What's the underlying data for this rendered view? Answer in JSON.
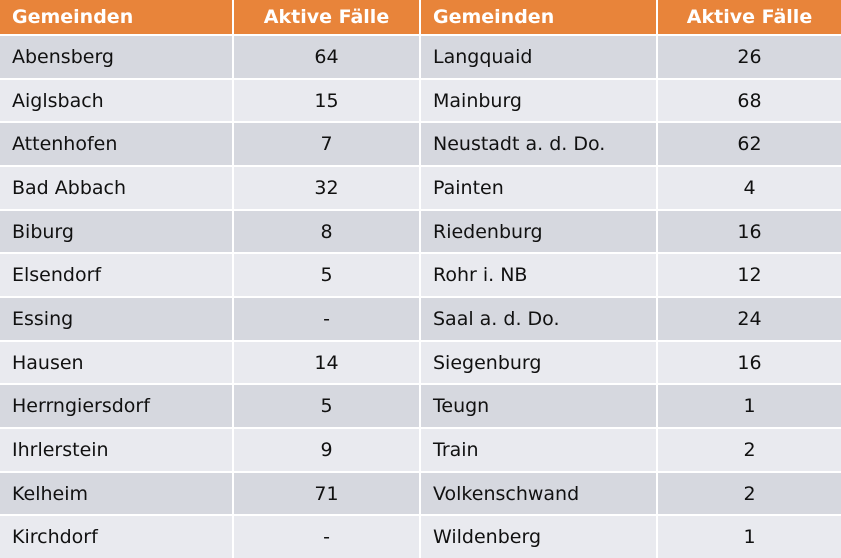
{
  "table": {
    "header": [
      "Gemeinden",
      "Aktive Fälle",
      "Gemeinden",
      "Aktive Fälle"
    ],
    "rows": [
      [
        "Abensberg",
        64,
        "Langquaid",
        26
      ],
      [
        "Aiglsbach",
        15,
        "Mainburg",
        68
      ],
      [
        "Attenhofen",
        7,
        "Neustadt a. d. Do.",
        62
      ],
      [
        "Bad Abbach",
        32,
        "Painten",
        4
      ],
      [
        "Biburg",
        8,
        "Riedenburg",
        16
      ],
      [
        "Elsendorf",
        5,
        "Rohr i. NB",
        12
      ],
      [
        "Essing",
        "-",
        "Saal a. d. Do.",
        24
      ],
      [
        "Hausen",
        14,
        "Siegenburg",
        16
      ],
      [
        "Herrngiersdorf",
        5,
        "Teugn",
        1
      ],
      [
        "Ihrlerstein",
        9,
        "Train",
        2
      ],
      [
        "Kelheim",
        71,
        "Volkenschwand",
        2
      ],
      [
        "Kirchdorf",
        "-",
        "Wildenberg",
        1
      ]
    ]
  }
}
